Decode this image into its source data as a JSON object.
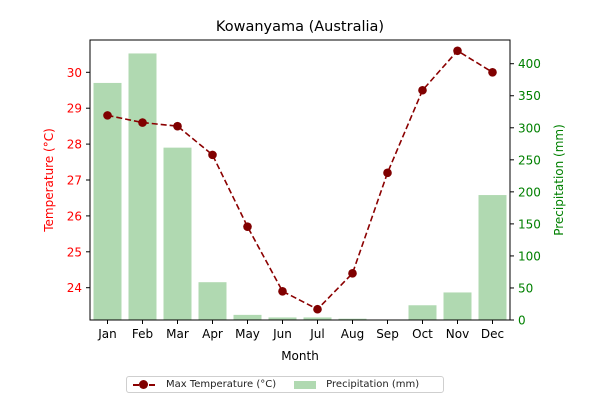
{
  "chart_data": {
    "type": "bar+line",
    "title": "Kowanyama (Australia)",
    "xlabel": "Month",
    "categories": [
      "Jan",
      "Feb",
      "Mar",
      "Apr",
      "May",
      "Jun",
      "Jul",
      "Aug",
      "Sep",
      "Oct",
      "Nov",
      "Dec"
    ],
    "left_axis": {
      "label": "Temperature (°C)",
      "color": "#ff0000",
      "ticks": [
        24,
        25,
        26,
        27,
        28,
        29,
        30
      ],
      "ylim": [
        23.1,
        30.9
      ]
    },
    "right_axis": {
      "label": "Precipitation (mm)",
      "color": "#008000",
      "ticks": [
        0,
        50,
        100,
        150,
        200,
        250,
        300,
        350,
        400
      ],
      "ylim": [
        0,
        437
      ]
    },
    "series": [
      {
        "name": "Max Temperature (°C)",
        "kind": "line",
        "axis": "left",
        "color": "#8b0000",
        "marker_color": "#800000",
        "values": [
          28.8,
          28.6,
          28.5,
          27.7,
          25.7,
          23.9,
          23.4,
          24.4,
          27.2,
          29.5,
          30.6,
          30.0
        ]
      },
      {
        "name": "Precipitation (mm)",
        "kind": "bar",
        "axis": "right",
        "color": "#b0d9b1",
        "values": [
          370,
          416,
          269,
          59,
          8,
          4,
          4,
          2,
          0,
          23,
          43,
          195
        ]
      }
    ],
    "grid": false,
    "legend_position": "bottom-center"
  }
}
